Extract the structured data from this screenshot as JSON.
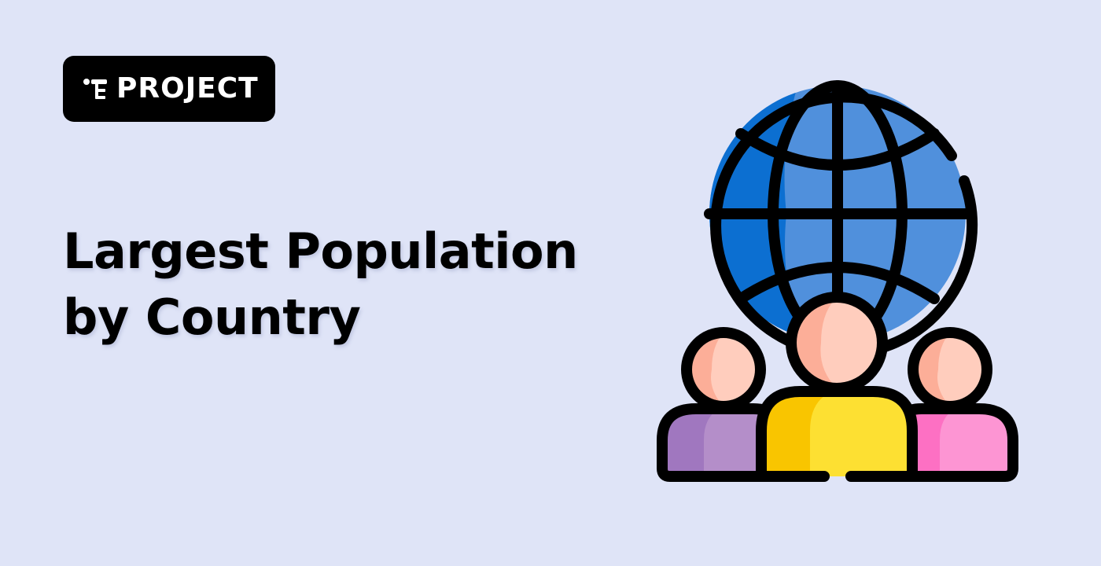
{
  "badge": {
    "label": "PROJECT",
    "icon": "project-tree-icon"
  },
  "title": {
    "line1": "Largest Population",
    "line2": "by Country"
  },
  "illustration": {
    "icon": "globe-with-people-icon",
    "colors": {
      "background": "#dfe4f7",
      "globe_dark": "#0c6fd1",
      "globe_light": "#5090dc",
      "face_light": "#ffcdbd",
      "face_dark": "#fcae98",
      "body_left_light": "#b48ec9",
      "body_left_dark": "#a077bf",
      "body_center_light": "#fde032",
      "body_center_dark": "#f9c500",
      "body_right_light": "#fd95d3",
      "body_right_dark": "#fd70c3",
      "outline": "#000000"
    }
  }
}
